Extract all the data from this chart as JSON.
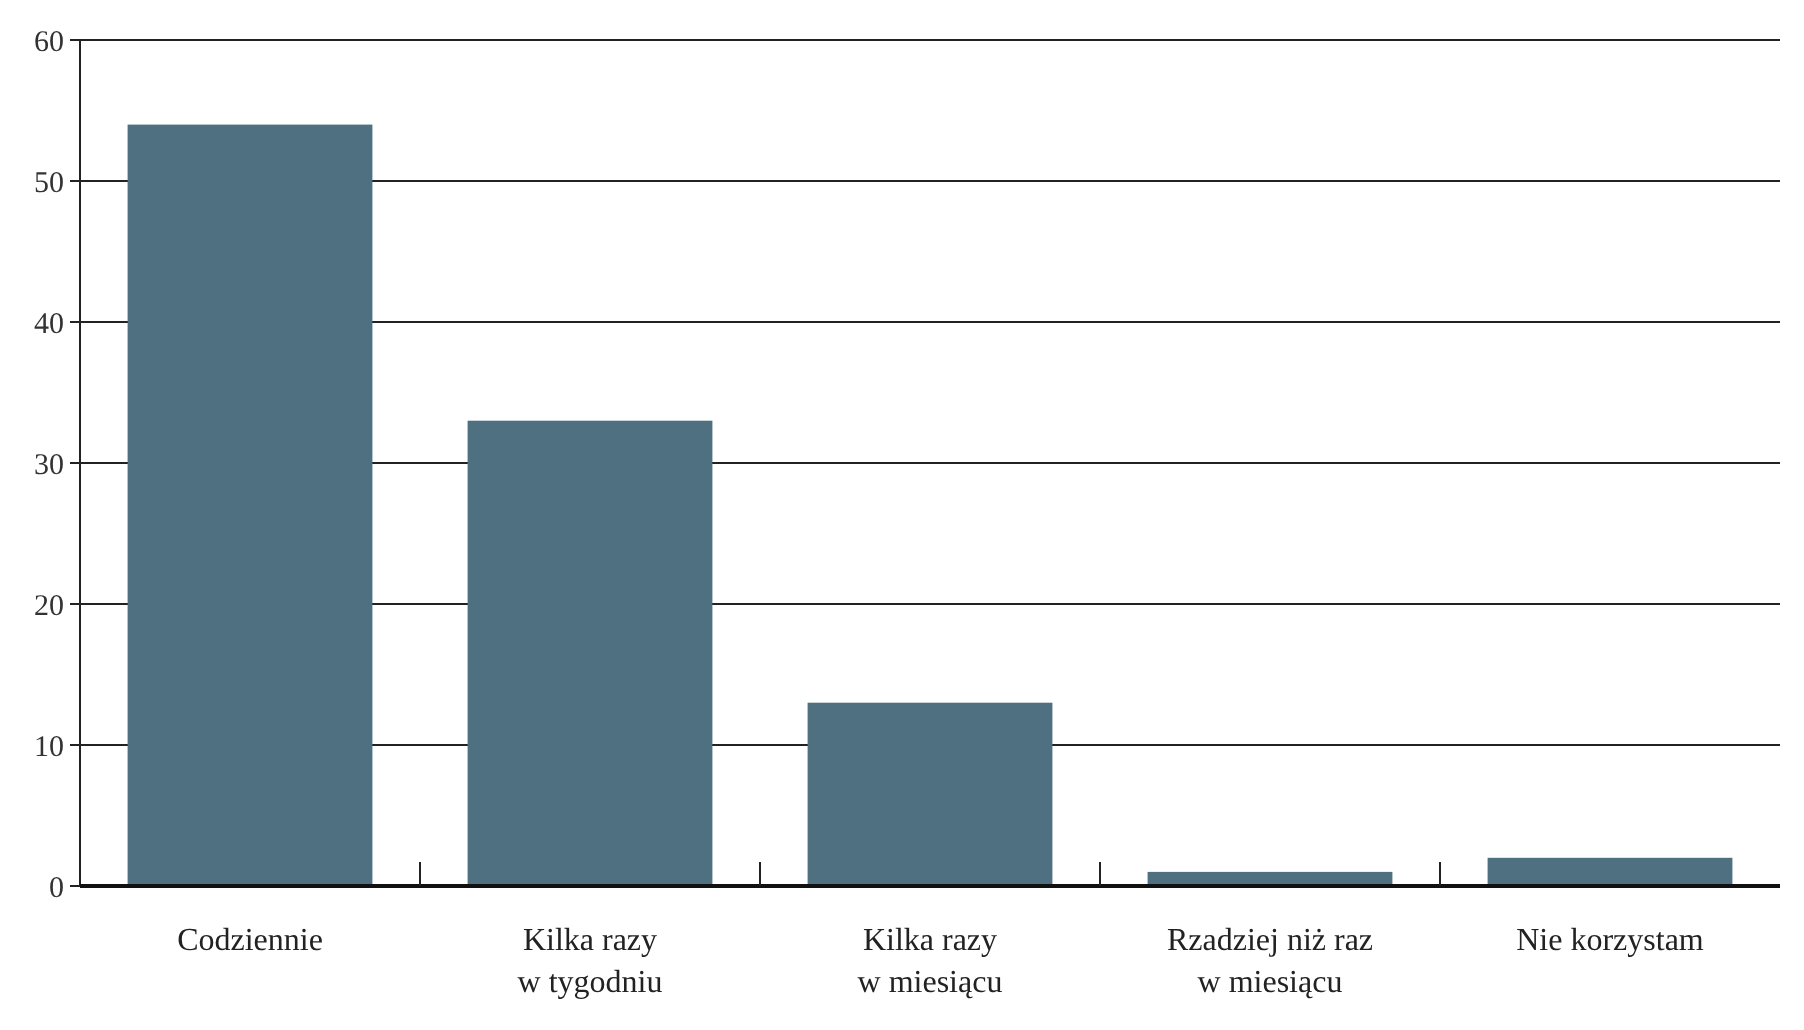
{
  "chart_data": {
    "type": "bar",
    "categories": [
      "Codziennie",
      "Kilka razy\nw tygodniu",
      "Kilka razy\nw miesiącu",
      "Rzadziej niż raz\nw miesiącu",
      "Nie korzystam"
    ],
    "values": [
      54,
      33,
      13,
      1,
      2
    ],
    "color": "#4e7080",
    "ylim": [
      0,
      60
    ],
    "yticks": [
      0,
      10,
      20,
      30,
      40,
      50,
      60
    ],
    "grid": "y"
  }
}
